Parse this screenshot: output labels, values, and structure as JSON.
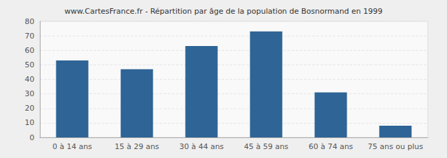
{
  "chart_data": {
    "type": "bar",
    "title": "www.CartesFrance.fr - Répartition par âge de la population de Bosnormand en 1999",
    "categories": [
      "0 à 14 ans",
      "15 à 29 ans",
      "30 à 44 ans",
      "45 à 59 ans",
      "60 à 74 ans",
      "75 ans ou plus"
    ],
    "values": [
      53,
      47,
      63,
      73,
      31,
      8
    ],
    "color": "#2e6496",
    "ylim": [
      0,
      80
    ],
    "yticks": [
      0,
      10,
      20,
      30,
      40,
      50,
      60,
      70,
      80
    ],
    "grid": true
  }
}
